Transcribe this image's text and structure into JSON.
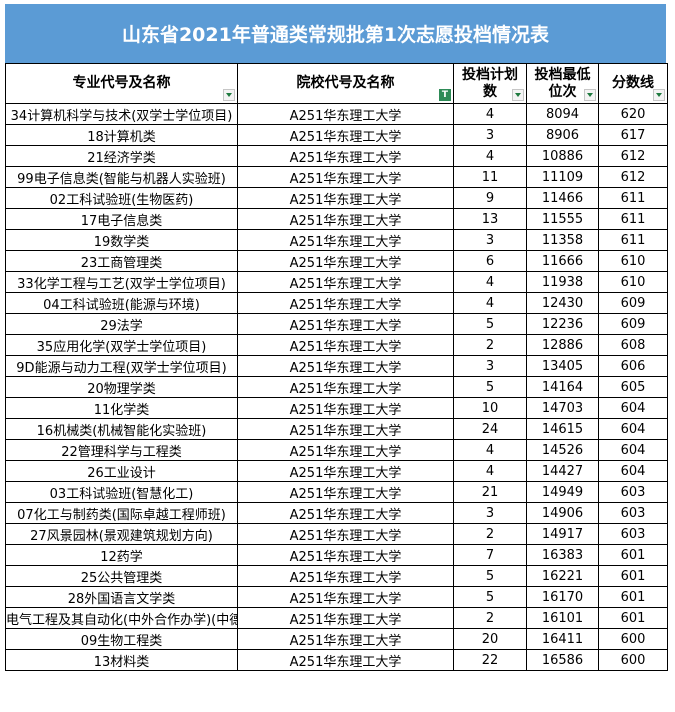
{
  "title": "山东省2021年普通类常规批第1次志愿投档情况表",
  "headers": [
    {
      "label": "专业代号及名称",
      "filter": "dropdown"
    },
    {
      "label": "院校代号及名称",
      "filter": "active"
    },
    {
      "label": "投档计划数",
      "filter": "dropdown"
    },
    {
      "label": "投档最低位次",
      "filter": "dropdown"
    },
    {
      "label": "分数线",
      "filter": "dropdown"
    }
  ],
  "rows": [
    {
      "major": "34计算机科学与技术(双学士学位项目)",
      "school": "A251华东理工大学",
      "plan": "4",
      "rank": "8094",
      "score": "620"
    },
    {
      "major": "18计算机类",
      "school": "A251华东理工大学",
      "plan": "3",
      "rank": "8906",
      "score": "617"
    },
    {
      "major": "21经济学类",
      "school": "A251华东理工大学",
      "plan": "4",
      "rank": "10886",
      "score": "612"
    },
    {
      "major": "99电子信息类(智能与机器人实验班)",
      "school": "A251华东理工大学",
      "plan": "11",
      "rank": "11109",
      "score": "612"
    },
    {
      "major": "02工科试验班(生物医药)",
      "school": "A251华东理工大学",
      "plan": "9",
      "rank": "11466",
      "score": "611"
    },
    {
      "major": "17电子信息类",
      "school": "A251华东理工大学",
      "plan": "13",
      "rank": "11555",
      "score": "611"
    },
    {
      "major": "19数学类",
      "school": "A251华东理工大学",
      "plan": "3",
      "rank": "11358",
      "score": "611"
    },
    {
      "major": "23工商管理类",
      "school": "A251华东理工大学",
      "plan": "6",
      "rank": "11666",
      "score": "610"
    },
    {
      "major": "33化学工程与工艺(双学士学位项目)",
      "school": "A251华东理工大学",
      "plan": "4",
      "rank": "11938",
      "score": "610"
    },
    {
      "major": "04工科试验班(能源与环境)",
      "school": "A251华东理工大学",
      "plan": "4",
      "rank": "12430",
      "score": "609"
    },
    {
      "major": "29法学",
      "school": "A251华东理工大学",
      "plan": "5",
      "rank": "12236",
      "score": "609"
    },
    {
      "major": "35应用化学(双学士学位项目)",
      "school": "A251华东理工大学",
      "plan": "2",
      "rank": "12886",
      "score": "608"
    },
    {
      "major": "9D能源与动力工程(双学士学位项目)",
      "school": "A251华东理工大学",
      "plan": "3",
      "rank": "13405",
      "score": "606"
    },
    {
      "major": "20物理学类",
      "school": "A251华东理工大学",
      "plan": "5",
      "rank": "14164",
      "score": "605"
    },
    {
      "major": "11化学类",
      "school": "A251华东理工大学",
      "plan": "10",
      "rank": "14703",
      "score": "604"
    },
    {
      "major": "16机械类(机械智能化实验班)",
      "school": "A251华东理工大学",
      "plan": "24",
      "rank": "14615",
      "score": "604"
    },
    {
      "major": "22管理科学与工程类",
      "school": "A251华东理工大学",
      "plan": "4",
      "rank": "14526",
      "score": "604"
    },
    {
      "major": "26工业设计",
      "school": "A251华东理工大学",
      "plan": "4",
      "rank": "14427",
      "score": "604"
    },
    {
      "major": "03工科试验班(智慧化工)",
      "school": "A251华东理工大学",
      "plan": "21",
      "rank": "14949",
      "score": "603"
    },
    {
      "major": "07化工与制药类(国际卓越工程师班)",
      "school": "A251华东理工大学",
      "plan": "3",
      "rank": "14906",
      "score": "603"
    },
    {
      "major": "27风景园林(景观建筑规划方向)",
      "school": "A251华东理工大学",
      "plan": "2",
      "rank": "14917",
      "score": "603"
    },
    {
      "major": "12药学",
      "school": "A251华东理工大学",
      "plan": "7",
      "rank": "16383",
      "score": "601"
    },
    {
      "major": "25公共管理类",
      "school": "A251华东理工大学",
      "plan": "5",
      "rank": "16221",
      "score": "601"
    },
    {
      "major": "28外国语言文学类",
      "school": "A251华东理工大学",
      "plan": "5",
      "rank": "16170",
      "score": "601"
    },
    {
      "major": "电气工程及其自动化(中外合作办学)(中德合",
      "school": "A251华东理工大学",
      "plan": "2",
      "rank": "16101",
      "score": "601"
    },
    {
      "major": "09生物工程类",
      "school": "A251华东理工大学",
      "plan": "20",
      "rank": "16411",
      "score": "600"
    },
    {
      "major": "13材料类",
      "school": "A251华东理工大学",
      "plan": "22",
      "rank": "16586",
      "score": "600"
    }
  ]
}
